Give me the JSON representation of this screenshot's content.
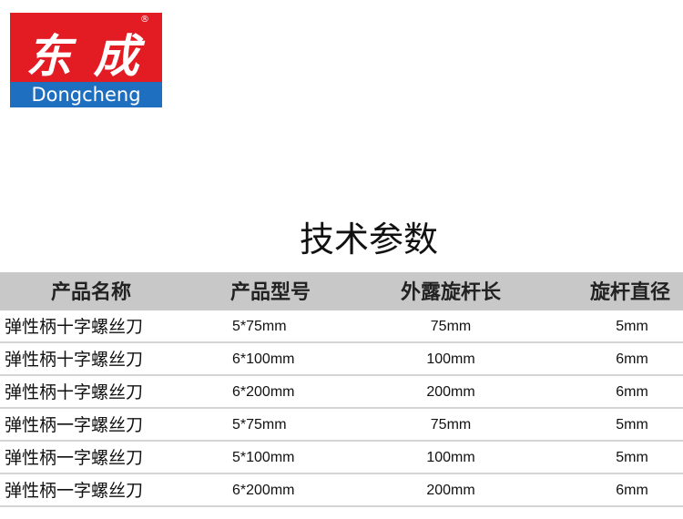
{
  "logo": {
    "chinese": "东成",
    "english": "Dongcheng",
    "registered": "®",
    "colors": {
      "red": "#e31b23",
      "blue": "#1f6fc0"
    }
  },
  "title": "技术参数",
  "table": {
    "headers": [
      "产品名称",
      "产品型号",
      "外露旋杆长",
      "旋杆直径"
    ],
    "rows": [
      [
        "弹性柄十字螺丝刀",
        "5*75mm",
        "75mm",
        "5mm"
      ],
      [
        "弹性柄十字螺丝刀",
        "6*100mm",
        "100mm",
        "6mm"
      ],
      [
        "弹性柄十字螺丝刀",
        "6*200mm",
        "200mm",
        "6mm"
      ],
      [
        "弹性柄一字螺丝刀",
        "5*75mm",
        "75mm",
        "5mm"
      ],
      [
        "弹性柄一字螺丝刀",
        "5*100mm",
        "100mm",
        "5mm"
      ],
      [
        "弹性柄一字螺丝刀",
        "6*200mm",
        "200mm",
        "6mm"
      ]
    ]
  }
}
